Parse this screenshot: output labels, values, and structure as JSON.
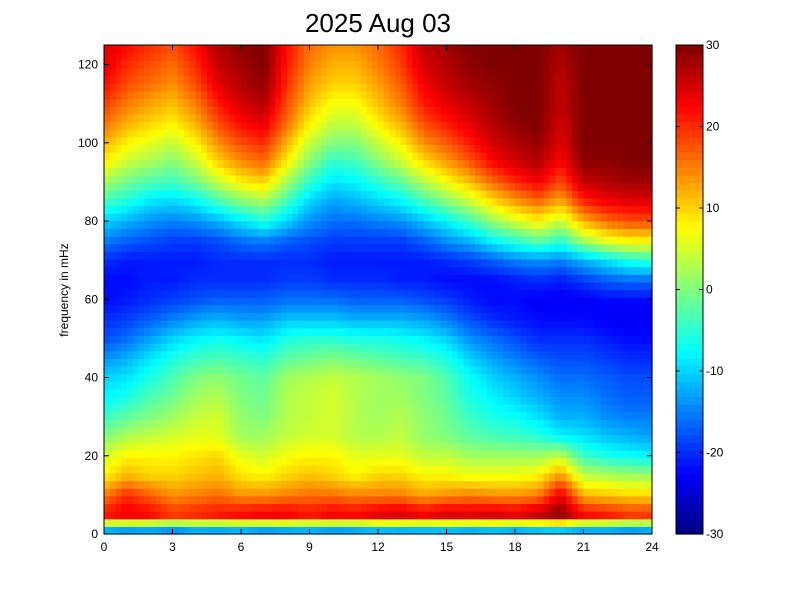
{
  "chart_data": {
    "type": "heatmap",
    "title": "2025 Aug 03",
    "xlabel": "",
    "ylabel": "frequency in mHz",
    "xlim": [
      0,
      24
    ],
    "ylim": [
      0,
      125
    ],
    "x_ticks": [
      0,
      3,
      6,
      9,
      12,
      15,
      18,
      21,
      24
    ],
    "y_ticks": [
      0,
      20,
      40,
      60,
      80,
      100,
      120
    ],
    "colorbar": {
      "clim": [
        -30,
        30
      ],
      "ticks": [
        30,
        20,
        10,
        0,
        -10,
        -20,
        -30
      ],
      "colormap": "jet"
    },
    "grid": false,
    "x": [
      0,
      1,
      2,
      3,
      4,
      5,
      6,
      7,
      8,
      9,
      10,
      11,
      12,
      13,
      14,
      15,
      16,
      17,
      18,
      19,
      20,
      21,
      22,
      23,
      24
    ],
    "y": [
      0,
      5,
      10,
      15,
      20,
      25,
      30,
      35,
      40,
      45,
      50,
      55,
      60,
      65,
      70,
      75,
      80,
      85,
      90,
      95,
      100,
      105,
      110,
      115,
      120,
      125
    ],
    "values": [
      [
        -20,
        -22,
        -21,
        -22,
        -20,
        -21,
        -20,
        -22,
        -21,
        -20,
        -22,
        -21,
        -20,
        -21,
        -20,
        -20,
        -21,
        -20,
        -21,
        -20,
        -20,
        -21,
        -20,
        -21,
        -20
      ],
      [
        22,
        24,
        23,
        20,
        21,
        22,
        23,
        24,
        24,
        22,
        24,
        23,
        25,
        26,
        24,
        26,
        25,
        26,
        25,
        27,
        30,
        23,
        22,
        20,
        20
      ],
      [
        15,
        20,
        17,
        14,
        15,
        16,
        14,
        14,
        15,
        16,
        16,
        15,
        15,
        15,
        13,
        14,
        15,
        14,
        14,
        15,
        24,
        12,
        11,
        10,
        10
      ],
      [
        8,
        12,
        10,
        10,
        11,
        12,
        9,
        8,
        10,
        11,
        10,
        8,
        10,
        10,
        8,
        8,
        7,
        7,
        7,
        8,
        14,
        4,
        3,
        2,
        2
      ],
      [
        5,
        8,
        8,
        8,
        9,
        10,
        6,
        5,
        7,
        8,
        8,
        6,
        6,
        6,
        4,
        4,
        2,
        2,
        2,
        2,
        4,
        -4,
        -6,
        -7,
        -8
      ],
      [
        0,
        3,
        4,
        5,
        6,
        6,
        2,
        2,
        4,
        5,
        5,
        3,
        3,
        4,
        1,
        0,
        -2,
        -3,
        -4,
        -5,
        -8,
        -9,
        -11,
        -12,
        -13
      ],
      [
        -4,
        -2,
        0,
        2,
        4,
        5,
        1,
        0,
        3,
        4,
        5,
        3,
        2,
        3,
        1,
        -1,
        -4,
        -6,
        -7,
        -9,
        -12,
        -12,
        -14,
        -15,
        -15
      ],
      [
        -8,
        -6,
        -3,
        -1,
        2,
        3,
        0,
        -1,
        3,
        4,
        5,
        3,
        2,
        2,
        0,
        -2,
        -6,
        -8,
        -10,
        -12,
        -14,
        -14,
        -16,
        -17,
        -17
      ],
      [
        -10,
        -9,
        -6,
        -3,
        0,
        1,
        -1,
        -2,
        2,
        3,
        4,
        3,
        2,
        1,
        0,
        -3,
        -7,
        -10,
        -12,
        -14,
        -16,
        -16,
        -17,
        -18,
        -18
      ],
      [
        -14,
        -12,
        -9,
        -6,
        -4,
        -3,
        -4,
        -5,
        -2,
        -1,
        0,
        -1,
        -2,
        -3,
        -4,
        -6,
        -10,
        -13,
        -15,
        -17,
        -18,
        -18,
        -19,
        -20,
        -20
      ],
      [
        -18,
        -16,
        -13,
        -10,
        -8,
        -7,
        -8,
        -9,
        -6,
        -5,
        -5,
        -6,
        -6,
        -7,
        -8,
        -10,
        -14,
        -16,
        -18,
        -20,
        -20,
        -20,
        -21,
        -22,
        -22
      ],
      [
        -20,
        -19,
        -17,
        -15,
        -13,
        -12,
        -13,
        -13,
        -11,
        -11,
        -11,
        -12,
        -12,
        -12,
        -13,
        -15,
        -18,
        -20,
        -21,
        -22,
        -22,
        -22,
        -23,
        -23,
        -23
      ],
      [
        -22,
        -21,
        -20,
        -19,
        -18,
        -17,
        -17,
        -17,
        -16,
        -16,
        -16,
        -17,
        -17,
        -17,
        -18,
        -19,
        -21,
        -22,
        -22,
        -23,
        -23,
        -23,
        -22,
        -22,
        -22
      ],
      [
        -22,
        -22,
        -21,
        -21,
        -20,
        -20,
        -20,
        -20,
        -19,
        -19,
        -20,
        -20,
        -20,
        -21,
        -21,
        -22,
        -22,
        -22,
        -21,
        -20,
        -21,
        -19,
        -17,
        -16,
        -16
      ],
      [
        -20,
        -21,
        -21,
        -21,
        -21,
        -20,
        -20,
        -20,
        -20,
        -20,
        -21,
        -21,
        -21,
        -21,
        -21,
        -20,
        -19,
        -17,
        -15,
        -14,
        -15,
        -12,
        -9,
        -6,
        -5
      ],
      [
        -15,
        -17,
        -18,
        -19,
        -19,
        -18,
        -16,
        -15,
        -17,
        -18,
        -19,
        -19,
        -19,
        -19,
        -17,
        -14,
        -12,
        -8,
        -5,
        -2,
        -5,
        2,
        6,
        8,
        8
      ],
      [
        -10,
        -12,
        -14,
        -15,
        -14,
        -12,
        -9,
        -6,
        -10,
        -14,
        -16,
        -16,
        -15,
        -14,
        -11,
        -8,
        -4,
        1,
        5,
        8,
        4,
        12,
        16,
        18,
        18
      ],
      [
        -4,
        -6,
        -9,
        -10,
        -8,
        -4,
        0,
        2,
        -4,
        -10,
        -13,
        -12,
        -10,
        -8,
        -4,
        0,
        4,
        9,
        13,
        16,
        12,
        20,
        23,
        24,
        24
      ],
      [
        2,
        -1,
        -3,
        -4,
        -1,
        4,
        8,
        10,
        2,
        -5,
        -9,
        -8,
        -5,
        -2,
        3,
        7,
        11,
        16,
        20,
        23,
        18,
        26,
        27,
        28,
        28
      ],
      [
        8,
        4,
        2,
        0,
        4,
        10,
        14,
        16,
        8,
        0,
        -5,
        -4,
        0,
        4,
        9,
        13,
        17,
        22,
        25,
        27,
        22,
        29,
        29,
        30,
        30
      ],
      [
        12,
        8,
        6,
        4,
        8,
        14,
        18,
        20,
        12,
        4,
        0,
        0,
        4,
        8,
        14,
        17,
        21,
        25,
        27,
        29,
        24,
        30,
        30,
        30,
        30
      ],
      [
        16,
        12,
        10,
        8,
        12,
        18,
        22,
        24,
        16,
        8,
        4,
        4,
        8,
        12,
        18,
        21,
        24,
        27,
        29,
        30,
        25,
        30,
        30,
        30,
        30
      ],
      [
        19,
        15,
        13,
        11,
        15,
        21,
        25,
        27,
        18,
        11,
        7,
        7,
        11,
        15,
        21,
        24,
        26,
        28,
        30,
        30,
        26,
        30,
        30,
        30,
        30
      ],
      [
        22,
        18,
        16,
        14,
        18,
        24,
        27,
        29,
        20,
        13,
        10,
        10,
        13,
        17,
        23,
        26,
        28,
        29,
        30,
        30,
        26,
        30,
        30,
        30,
        30
      ],
      [
        24,
        20,
        18,
        16,
        20,
        26,
        28,
        30,
        21,
        15,
        12,
        12,
        15,
        19,
        25,
        27,
        29,
        30,
        30,
        30,
        27,
        30,
        30,
        30,
        30
      ],
      [
        25,
        22,
        20,
        18,
        22,
        27,
        29,
        30,
        22,
        16,
        14,
        14,
        16,
        20,
        26,
        28,
        30,
        30,
        30,
        30,
        28,
        30,
        30,
        30,
        30
      ]
    ]
  }
}
